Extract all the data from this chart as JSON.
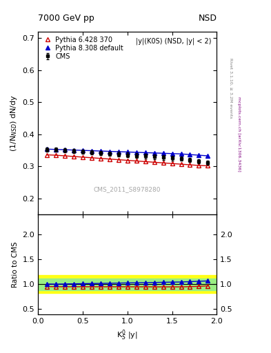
{
  "title_left": "7000 GeV pp",
  "title_right": "NSD",
  "annotation": "|y|(K0S) (NSD, |y| < 2)",
  "watermark": "CMS_2011_S8978280",
  "right_label_top": "Rivet 3.1.10, ≥ 3.2M events",
  "right_label_bot": "mcplots.cern.ch [arXiv:1306.3436]",
  "ylabel_main": "(1/N$_{NSD}$) dN/dy",
  "ylabel_ratio": "Ratio to CMS",
  "xlabel": "K$^0_S$ |y|",
  "xlim": [
    0,
    2
  ],
  "ylim_main": [
    0.15,
    0.72
  ],
  "ylim_ratio": [
    0.4,
    2.4
  ],
  "yticks_main": [
    0.2,
    0.3,
    0.4,
    0.5,
    0.6,
    0.7
  ],
  "yticks_ratio": [
    0.5,
    1.0,
    1.5,
    2.0
  ],
  "xticks": [
    0,
    0.5,
    1.0,
    1.5,
    2.0
  ],
  "cms_x": [
    0.1,
    0.2,
    0.3,
    0.4,
    0.5,
    0.6,
    0.7,
    0.8,
    0.9,
    1.0,
    1.1,
    1.2,
    1.3,
    1.4,
    1.5,
    1.6,
    1.7,
    1.8,
    1.9
  ],
  "cms_y": [
    0.352,
    0.352,
    0.35,
    0.348,
    0.346,
    0.344,
    0.342,
    0.34,
    0.338,
    0.336,
    0.334,
    0.332,
    0.33,
    0.328,
    0.326,
    0.324,
    0.32,
    0.316,
    0.312
  ],
  "cms_yerr": [
    0.007,
    0.007,
    0.007,
    0.007,
    0.007,
    0.007,
    0.007,
    0.007,
    0.007,
    0.007,
    0.007,
    0.007,
    0.007,
    0.007,
    0.007,
    0.007,
    0.007,
    0.007,
    0.007
  ],
  "py6_x": [
    0.1,
    0.2,
    0.3,
    0.4,
    0.5,
    0.6,
    0.7,
    0.8,
    0.9,
    1.0,
    1.1,
    1.2,
    1.3,
    1.4,
    1.5,
    1.6,
    1.7,
    1.8,
    1.9
  ],
  "py6_y": [
    0.336,
    0.335,
    0.333,
    0.331,
    0.329,
    0.327,
    0.325,
    0.323,
    0.321,
    0.319,
    0.317,
    0.315,
    0.313,
    0.311,
    0.309,
    0.307,
    0.305,
    0.303,
    0.302
  ],
  "py8_x": [
    0.1,
    0.2,
    0.3,
    0.4,
    0.5,
    0.6,
    0.7,
    0.8,
    0.9,
    1.0,
    1.1,
    1.2,
    1.3,
    1.4,
    1.5,
    1.6,
    1.7,
    1.8,
    1.9
  ],
  "py8_y": [
    0.354,
    0.353,
    0.352,
    0.351,
    0.35,
    0.349,
    0.348,
    0.347,
    0.346,
    0.345,
    0.344,
    0.343,
    0.342,
    0.341,
    0.34,
    0.339,
    0.337,
    0.335,
    0.333
  ],
  "ratio_py6": [
    0.955,
    0.952,
    0.951,
    0.951,
    0.951,
    0.95,
    0.95,
    0.95,
    0.95,
    0.95,
    0.949,
    0.95,
    0.948,
    0.948,
    0.948,
    0.948,
    0.953,
    0.958,
    0.968
  ],
  "ratio_py8": [
    1.006,
    1.003,
    1.006,
    1.009,
    1.012,
    1.015,
    1.018,
    1.021,
    1.024,
    1.027,
    1.03,
    1.033,
    1.036,
    1.04,
    1.043,
    1.046,
    1.053,
    1.06,
    1.067
  ],
  "band_green_lo": 0.88,
  "band_green_hi": 1.12,
  "band_yellow_lo": 0.82,
  "band_yellow_hi": 1.18,
  "cms_color": "black",
  "py6_color": "#cc0000",
  "py8_color": "#0000cc",
  "legend_labels": [
    "CMS",
    "Pythia 6.428 370",
    "Pythia 8.308 default"
  ],
  "ref_line": 1.0
}
